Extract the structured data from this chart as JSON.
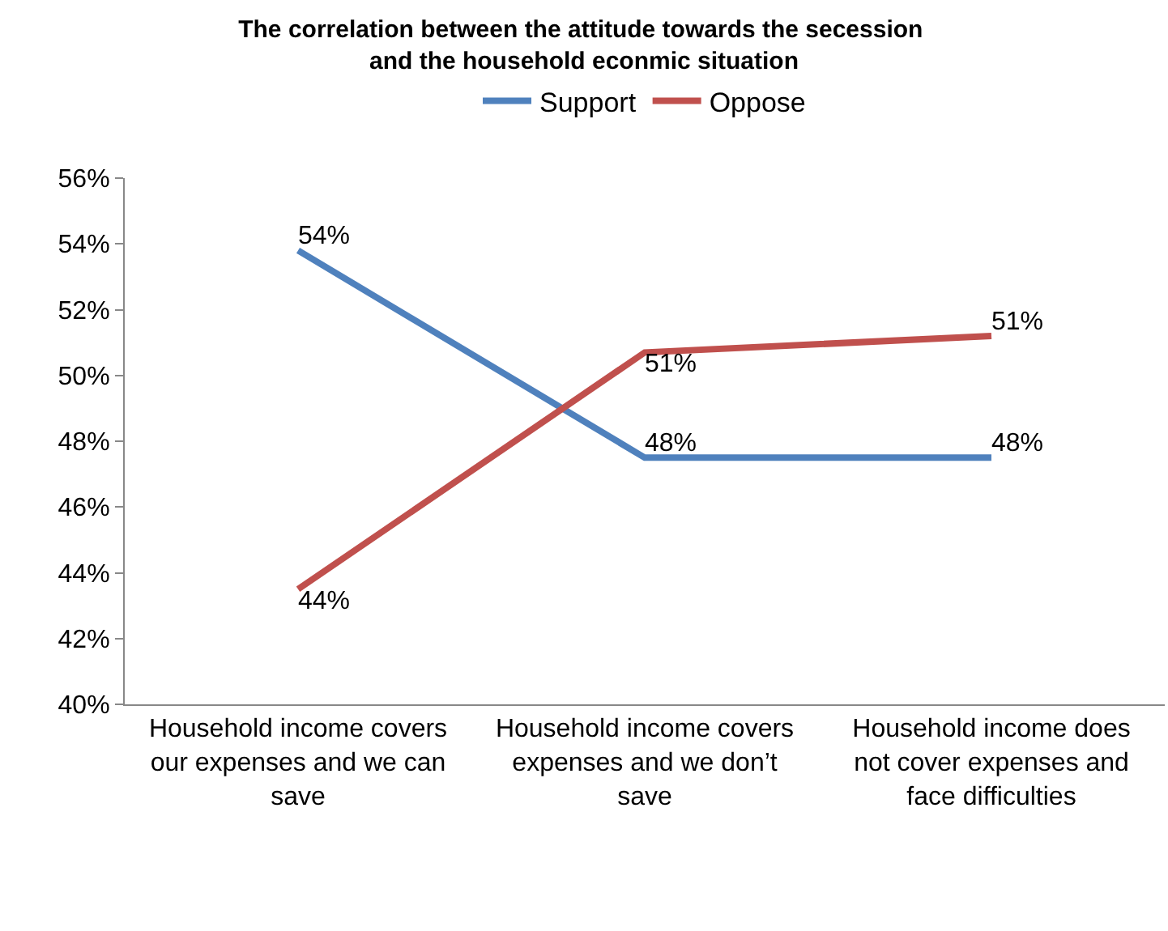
{
  "chart_data": {
    "type": "line",
    "title": "The correlation between the attitude towards the secession  and the household econmic situation",
    "categories": [
      "Household income covers our expenses and we can save",
      "Household income covers expenses and we don’t save",
      "Household income does not cover expenses and face difficulties"
    ],
    "series": [
      {
        "name": "Support",
        "color": "#4f81bd",
        "values": [
          53.8,
          47.5,
          47.5
        ],
        "value_labels": [
          "54%",
          "48%",
          "48%"
        ]
      },
      {
        "name": "Oppose",
        "color": "#c0504d",
        "values": [
          43.5,
          50.7,
          51.2
        ],
        "value_labels": [
          "44%",
          "51%",
          "51%"
        ]
      }
    ],
    "ylim": [
      40,
      56
    ],
    "yticks": [
      {
        "value": 40,
        "label": "40%"
      },
      {
        "value": 42,
        "label": "42%"
      },
      {
        "value": 44,
        "label": "44%"
      },
      {
        "value": 46,
        "label": "46%"
      },
      {
        "value": 48,
        "label": "48%"
      },
      {
        "value": 50,
        "label": "50%"
      },
      {
        "value": 52,
        "label": "52%"
      },
      {
        "value": 54,
        "label": "54%"
      },
      {
        "value": 56,
        "label": "56%"
      }
    ],
    "legend": "top",
    "marker": "none",
    "line_style": "solid"
  }
}
